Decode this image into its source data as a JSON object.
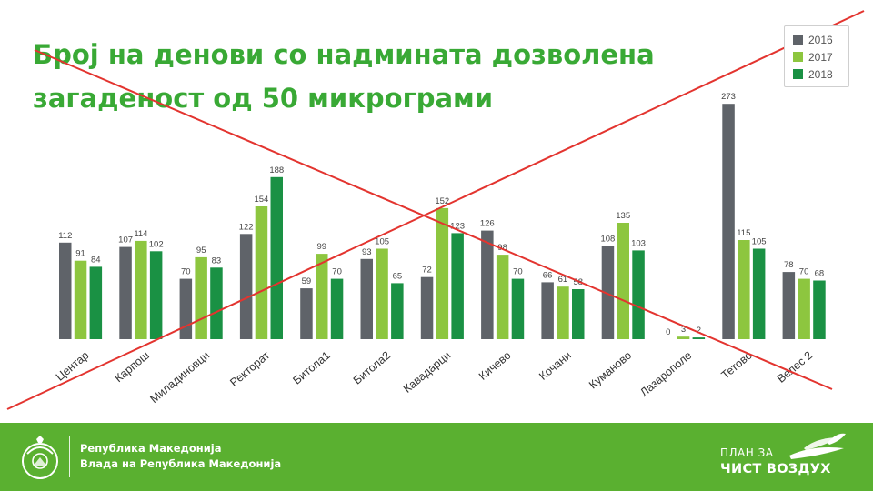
{
  "chart_data": {
    "type": "bar",
    "title_lines": [
      "Број на денови со надмината дозволена",
      "загаденост од 50 микрограми"
    ],
    "categories": [
      "Центар",
      "Карпош",
      "Миладиновци",
      "Ректорат",
      "Битола1",
      "Битола2",
      "Кавадарци",
      "Кичево",
      "Кочани",
      "Куманово",
      "Лазарополе",
      "Тетово",
      "Велес 2"
    ],
    "series": [
      {
        "name": "2016",
        "color": "#5f6369",
        "values": [
          112,
          107,
          70,
          122,
          59,
          93,
          72,
          126,
          66,
          108,
          0,
          273,
          78
        ]
      },
      {
        "name": "2017",
        "color": "#8dc63f",
        "values": [
          91,
          114,
          95,
          154,
          99,
          105,
          152,
          98,
          61,
          135,
          3,
          115,
          70
        ]
      },
      {
        "name": "2018",
        "color": "#1a9144",
        "values": [
          84,
          102,
          83,
          188,
          70,
          65,
          123,
          70,
          58,
          103,
          2,
          105,
          68
        ]
      }
    ],
    "ylim": [
      0,
      300
    ],
    "grid": false,
    "legend_position": "top-right",
    "data_labels": true,
    "overlay": "red-cross"
  },
  "footer": {
    "gov_line1": "Република Македонија",
    "gov_line2": "Влада на Република Македонија",
    "plan_top": "ПЛАН ЗА",
    "plan_bottom": "ЧИСТ ВОЗДУХ"
  },
  "colors": {
    "title": "#39a935",
    "footer_bg": "#5ab030",
    "cross": "#e3342f"
  }
}
